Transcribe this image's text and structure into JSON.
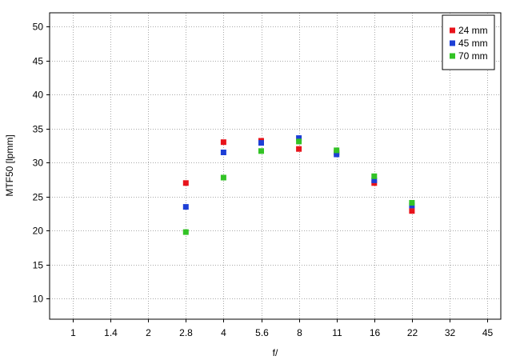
{
  "chart_data": {
    "type": "scatter",
    "title": "",
    "xlabel": "f/",
    "ylabel": "MTF50 [lpmm]",
    "x_ticks": [
      "1",
      "1.4",
      "2",
      "2.8",
      "4",
      "5.6",
      "8",
      "11",
      "16",
      "22",
      "32",
      "45"
    ],
    "ylim": [
      7,
      52
    ],
    "y_ticks": [
      10,
      15,
      20,
      25,
      30,
      35,
      40,
      45,
      50
    ],
    "grid": true,
    "legend_position": "top-right",
    "series": [
      {
        "name": "24 mm",
        "color": "#e8131b",
        "points": [
          [
            "2.8",
            27.0
          ],
          [
            "4",
            33.0
          ],
          [
            "5.6",
            33.2
          ],
          [
            "8",
            32.0
          ],
          [
            "11",
            31.5
          ],
          [
            "16",
            27.0
          ],
          [
            "22",
            22.9
          ]
        ]
      },
      {
        "name": "45 mm",
        "color": "#1d3fd6",
        "points": [
          [
            "2.8",
            23.5
          ],
          [
            "4",
            31.5
          ],
          [
            "5.6",
            32.9
          ],
          [
            "8",
            33.6
          ],
          [
            "11",
            31.2
          ],
          [
            "16",
            27.4
          ],
          [
            "22",
            23.7
          ]
        ]
      },
      {
        "name": "70 mm",
        "color": "#32c325",
        "points": [
          [
            "2.8",
            19.8
          ],
          [
            "4",
            27.8
          ],
          [
            "5.6",
            31.7
          ],
          [
            "8",
            33.1
          ],
          [
            "11",
            31.8
          ],
          [
            "16",
            28.0
          ],
          [
            "22",
            24.1
          ]
        ]
      }
    ]
  }
}
